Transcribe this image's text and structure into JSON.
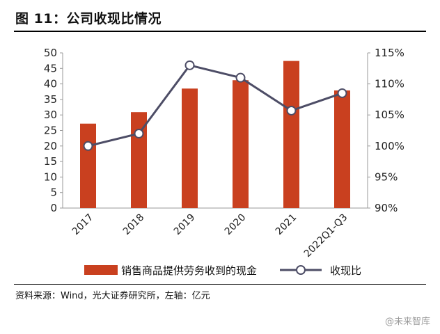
{
  "figure": {
    "title": "图 11：公司收现比情况",
    "source": "资料来源：Wind，光大证券研究所，左轴：亿元",
    "watermark": "@未来智库"
  },
  "chart_data": {
    "type": "bar+line",
    "categories": [
      "2017",
      "2018",
      "2019",
      "2020",
      "2021",
      "2022Q1-Q3"
    ],
    "series": [
      {
        "name": "销售商品提供劳务收到的现金",
        "kind": "bar",
        "axis": "left",
        "color": "#c9401f",
        "values": [
          27.2,
          30.9,
          38.5,
          41.2,
          47.4,
          37.9
        ]
      },
      {
        "name": "收现比",
        "kind": "line",
        "axis": "right",
        "color": "#4d4d66",
        "marker": "circle",
        "values": [
          100.0,
          102.0,
          113.0,
          111.0,
          105.7,
          108.5
        ]
      }
    ],
    "left_axis": {
      "ylim": [
        0,
        50
      ],
      "ticks": [
        "0",
        "5",
        "10",
        "15",
        "20",
        "25",
        "30",
        "35",
        "40",
        "45",
        "50"
      ],
      "unit": "亿元"
    },
    "right_axis": {
      "ylim": [
        90,
        115
      ],
      "ticks": [
        "90%",
        "95%",
        "100%",
        "105%",
        "110%",
        "115%"
      ]
    },
    "legend": {
      "position": "bottom",
      "bar_label": "销售商品提供劳务收到的现金",
      "line_label": "收现比"
    },
    "grid": false
  }
}
